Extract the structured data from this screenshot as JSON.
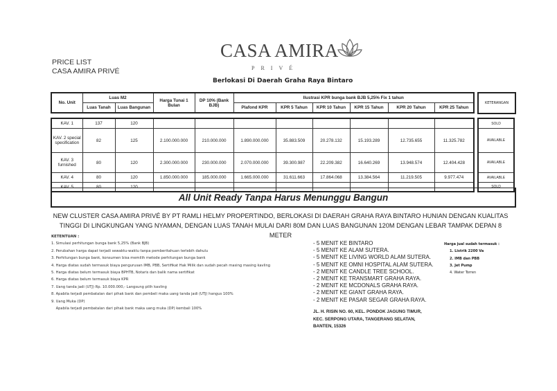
{
  "header": {
    "price_list": "PRICE LIST",
    "project": "CASA AMIRA PRIVÉ",
    "logo_text": "CASA AMIRA",
    "logo_sub": "PRIVÉ",
    "logo_icon": "lotus-icon",
    "location": "Berlokasi Di Daerah Graha Raya Bintaro"
  },
  "table": {
    "headers": {
      "no_unit": "No. Unit",
      "luas": "Luas M2",
      "luas_tanah": "Luas Tanah",
      "luas_bangunan": "Luas Bangunan",
      "harga": "Harga Tunai 1 Bulan",
      "dp": "DP 10% (Bank BJB)",
      "ilustrasi": "Ilustrasi KPR bunga bank BJB 5,25% Fix 1 tahun",
      "plafond": "Plafond KPR",
      "kpr5": "KPR 5 Tahun",
      "kpr10": "KPR 10 Tahun",
      "kpr15": "KPR 15 Tahun",
      "kpr20": "KPR 20 Tahun",
      "kpr25": "KPR 25 Tahun",
      "keterangan": "KETERANGAN"
    },
    "rows": [
      {
        "unit": "KAV. 1",
        "tanah": "137",
        "bangunan": "120",
        "harga": "",
        "dp": "",
        "plafond": "",
        "kpr5": "",
        "kpr10": "",
        "kpr15": "",
        "kpr20": "",
        "kpr25": "",
        "status": "SOLD"
      },
      {
        "unit": "KAV. 2 special specification",
        "tanah": "82",
        "bangunan": "125",
        "harga": "2.100.000.000",
        "dp": "210.000.000",
        "plafond": "1.890.000.000",
        "kpr5": "35.883.509",
        "kpr10": "20.278.132",
        "kpr15": "15.193.289",
        "kpr20": "12.735.655",
        "kpr25": "11.325.782",
        "status": "AVAILABLE"
      },
      {
        "unit": "KAV. 3 furnished",
        "tanah": "80",
        "bangunan": "120",
        "harga": "2.300.000.000",
        "dp": "230.000.000",
        "plafond": "2.070.000.000",
        "kpr5": "39.300.987",
        "kpr10": "22.209.382",
        "kpr15": "16.640.269",
        "kpr20": "13.948.574",
        "kpr25": "12.404.428",
        "status": "AVAILABLE"
      },
      {
        "unit": "KAV. 4",
        "tanah": "80",
        "bangunan": "120",
        "harga": "1.850.000.000",
        "dp": "185.000.000",
        "plafond": "1.665.000.000",
        "kpr5": "31.611.663",
        "kpr10": "17.864.068",
        "kpr15": "13.384.564",
        "kpr20": "11.219.505",
        "kpr25": "9.977.474",
        "status": "AVAILABLE"
      },
      {
        "unit": "KAV. 5",
        "tanah": "80",
        "bangunan": "120",
        "harga": "",
        "dp": "",
        "plafond": "",
        "kpr5": "",
        "kpr10": "",
        "kpr15": "",
        "kpr20": "",
        "kpr25": "",
        "status": "SOLD"
      }
    ],
    "banner": "All Unit Ready Tanpa Harus Menunggu Bangun"
  },
  "cluster_text": "NEW CLUSTER CASA AMIRA PRIVÉ BY PT RAMLI HELMY PROPERTINDO, BERLOKASI DI DAERAH GRAHA RAYA BINTARO HUNIAN DENGAN KUALITAS TINGGI DI LINGKUNGAN YANG NYAMAN, DENGAN LUAS TANAH MULAI DARI 80M DAN LUAS BANGUNAN 120M DENGAN LEBAR TAMPAK DEPAN 8 METER",
  "terms": {
    "title": "KETENTUAN :",
    "items": [
      "1. Simulasi perhitungan bunga bank 5,25% (Bank BJB)",
      "2. Perubahan harga dapat terjadi sewaktu-waktu tanpa pemberitahuan terlebih dahulu",
      "3. Perhitungan bunga bank, konsumen bisa memilih metode perhitungan bunga bank",
      "4. Harga diatas sudah termasuk biaya pengurusan IMB, PBB, Sertifikat Hak Milik dan sudah pecah masing masing kavling",
      "5. Harga diatas belum termasuk biaya BPHTB, Notaris dan balik nama sertifikat",
      "6. Harga diatas belum termasuk biaya KPR",
      "7. Uang tanda jadi (UTJ) Rp. 10.000.000,- Langsung pilih kavling",
      "8. Apabila terjadi pembatalan dari pihak bank dan pembeli maka uang tanda jadi (UTJ) hangus 100%",
      "9. Uang Muka (DP)",
      "    Apabila terjadi pembatalan dari pihak bank maka uang muka (DP) kembali 100%"
    ]
  },
  "nearby": [
    "- 5 MENIT KE BINTARO",
    "- 5 MENIT KE ALAM SUTERA.",
    "- 5 MENIT KE LIVING WORLD ALAM SUTERA.",
    "- 5 MENIT KE OMNI HOSPITAL ALAM SUTERA.",
    "- 2 MENIT KE CANDLE TREE SCHOOL.",
    "- 2 MENIT KE TRANSMART GRAHA RAYA.",
    "- 2 MENIT KE MCDONALS GRAHA RAYA.",
    "- 2 MENIT KE GIANT GRAHA RAYA.",
    "- 2 MENIT KE PASAR SEGAR GRAHA RAYA."
  ],
  "address": [
    "JL. H. RISIN NO. 60, KEL. PONDOK JAGUNG TIMUR,",
    "KEC. SERPONG UTARA, TANGERANG SELATAN,",
    "BANTEN, 15326"
  ],
  "included": {
    "title": "Harga jual sudah termasuk :",
    "items": [
      "1. Listrik 2200 Va",
      "2. IMB dan PBB",
      "3. Jet Pump",
      "4. Water Torren"
    ]
  }
}
